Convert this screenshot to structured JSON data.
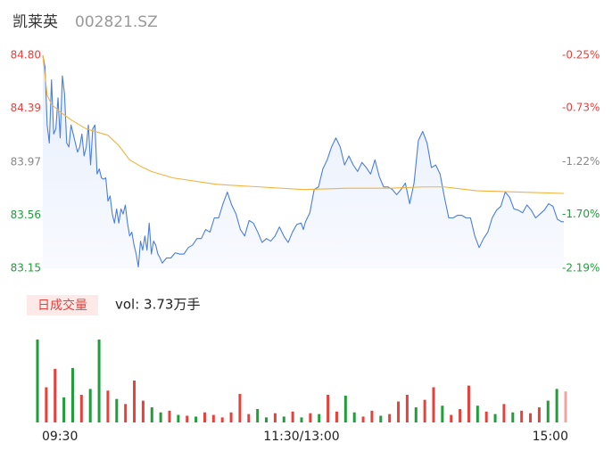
{
  "chart_data": [
    {
      "type": "line",
      "title": "凯莱英",
      "subtitle": "002821.SZ",
      "x": [
        0,
        1,
        2,
        3,
        4,
        5,
        6,
        7,
        8,
        9,
        10,
        11,
        12,
        13,
        14,
        15,
        16,
        17,
        18,
        19,
        20,
        21,
        22,
        23,
        24,
        25,
        26,
        27,
        28,
        29,
        30,
        31,
        32,
        33,
        34,
        35,
        36,
        37,
        38,
        39,
        40,
        41,
        42,
        43,
        44,
        45,
        46,
        47,
        48,
        49,
        50,
        51,
        52,
        53,
        54,
        55,
        57,
        59,
        61,
        63,
        65,
        67,
        69,
        71,
        73,
        75,
        77,
        79,
        81,
        83,
        85,
        87,
        89,
        91,
        93,
        95,
        97,
        99,
        101,
        103,
        105,
        107,
        109,
        111,
        113,
        115,
        117,
        119,
        120,
        121,
        123,
        125,
        127,
        129,
        131,
        133,
        135,
        137,
        139,
        141,
        143,
        145,
        147,
        149,
        151,
        153,
        155,
        157,
        159,
        161,
        163,
        165,
        167,
        169,
        171,
        173,
        175,
        177,
        179,
        181,
        183,
        185,
        187,
        189,
        191,
        193,
        195,
        197,
        199,
        201,
        203,
        205,
        207,
        209,
        211,
        213,
        215,
        217,
        219,
        221,
        223,
        225,
        227,
        229,
        231,
        233,
        235,
        237,
        239,
        240
      ],
      "series": [
        {
          "color": "#4a7fe0",
          "values": [
            84.8,
            84.71,
            84.26,
            84.12,
            84.61,
            84.19,
            84.23,
            84.47,
            84.16,
            84.64,
            84.5,
            84.12,
            84.09,
            84.26,
            84.19,
            84.12,
            84.05,
            84.09,
            84.19,
            84.02,
            84.09,
            84.26,
            83.95,
            84.23,
            84.26,
            83.88,
            83.92,
            83.85,
            83.84,
            83.85,
            83.67,
            83.71,
            83.57,
            83.5,
            83.61,
            83.5,
            83.61,
            83.57,
            83.64,
            83.5,
            83.4,
            83.43,
            83.33,
            83.26,
            83.16,
            83.36,
            83.29,
            83.4,
            83.29,
            83.5,
            83.26,
            83.36,
            83.33,
            83.26,
            83.23,
            83.19,
            83.23,
            83.23,
            83.27,
            83.26,
            83.26,
            83.31,
            83.33,
            83.38,
            83.38,
            83.45,
            83.43,
            83.54,
            83.54,
            83.65,
            83.74,
            83.64,
            83.57,
            83.45,
            83.4,
            83.52,
            83.5,
            83.43,
            83.35,
            83.38,
            83.36,
            83.4,
            83.47,
            83.4,
            83.35,
            83.43,
            83.49,
            83.5,
            83.45,
            83.51,
            83.58,
            83.76,
            83.78,
            83.92,
            83.99,
            84.09,
            84.16,
            84.09,
            83.95,
            84.02,
            83.95,
            83.9,
            83.97,
            83.93,
            83.88,
            83.99,
            83.86,
            83.78,
            83.78,
            83.76,
            83.72,
            83.76,
            83.81,
            83.65,
            83.81,
            84.14,
            84.21,
            84.12,
            83.93,
            83.95,
            83.88,
            83.7,
            83.54,
            83.54,
            83.56,
            83.56,
            83.54,
            83.54,
            83.4,
            83.31,
            83.38,
            83.43,
            83.54,
            83.6,
            83.63,
            83.74,
            83.7,
            83.61,
            83.6,
            83.58,
            83.64,
            83.6,
            83.54,
            83.57,
            83.6,
            83.65,
            83.63,
            83.53,
            83.51,
            83.51
          ],
          "area": true
        },
        {
          "color": "#f2b33d",
          "x": [
            0,
            2,
            4,
            8,
            13,
            20,
            30,
            35,
            40,
            45,
            50,
            60,
            80,
            100,
            120,
            140,
            160,
            175,
            185,
            200,
            220,
            240
          ],
          "values": [
            84.8,
            84.49,
            84.42,
            84.36,
            84.3,
            84.23,
            84.18,
            84.1,
            83.99,
            83.94,
            83.9,
            83.85,
            83.8,
            83.78,
            83.76,
            83.77,
            83.77,
            83.78,
            83.78,
            83.75,
            83.74,
            83.73
          ]
        }
      ],
      "xlim": [
        0,
        240
      ],
      "ylim": [
        83.15,
        84.8
      ],
      "yticks": [
        {
          "value": 84.8,
          "label": "84.80"
        },
        84.39,
        83.97,
        83.56,
        83.15
      ],
      "y2lim": [
        -2.19,
        -0.25
      ],
      "y2ticks": [
        {
          "value": -0.25,
          "label": "-0.25%"
        },
        {
          "value": -0.73,
          "label": "-0.73%"
        },
        {
          "value": -1.22,
          "label": "-1.22%"
        },
        {
          "value": -1.7,
          "label": "-1.70%"
        },
        {
          "value": -2.19,
          "label": "-2.19%"
        }
      ],
      "ytick_colors": [
        "#e8413c",
        "#e8413c",
        "#888888",
        "#1f9e3a",
        "#1f9e3a"
      ]
    },
    {
      "type": "bar",
      "label": "日成交量",
      "annotation": "vol: 3.73万手",
      "x": [
        0,
        4,
        8,
        12,
        16,
        20,
        24,
        28,
        32,
        36,
        40,
        44,
        48,
        52,
        56,
        60,
        64,
        68,
        72,
        76,
        80,
        84,
        88,
        92,
        96,
        100,
        104,
        108,
        112,
        116,
        120,
        124,
        128,
        132,
        136,
        140,
        144,
        148,
        152,
        156,
        160,
        164,
        168,
        172,
        176,
        180,
        184,
        188,
        192,
        196,
        200,
        204,
        208,
        212,
        216,
        220,
        224,
        228,
        232,
        236,
        240
      ],
      "values": [
        990,
        420,
        640,
        300,
        650,
        330,
        400,
        990,
        380,
        280,
        220,
        500,
        260,
        180,
        120,
        140,
        90,
        80,
        70,
        120,
        90,
        60,
        120,
        340,
        100,
        160,
        60,
        110,
        70,
        130,
        60,
        110,
        100,
        330,
        130,
        320,
        120,
        70,
        140,
        80,
        100,
        250,
        330,
        180,
        270,
        420,
        200,
        90,
        160,
        440,
        200,
        130,
        100,
        220,
        120,
        140,
        110,
        180,
        260,
        400,
        370
      ],
      "colors": [
        "#1f9e3a",
        "#e8413c",
        "#e8413c",
        "#1f9e3a",
        "#1f9e3a",
        "#e8413c",
        "#1f9e3a",
        "#1f9e3a",
        "#e8413c",
        "#1f9e3a",
        "#e8413c",
        "#e8413c",
        "#e8413c",
        "#1f9e3a",
        "#1f9e3a",
        "#e8413c",
        "#1f9e3a",
        "#e8413c",
        "#1f9e3a",
        "#e8413c",
        "#e8413c",
        "#e8413c",
        "#e8413c",
        "#e8413c",
        "#e8413c",
        "#1f9e3a",
        "#1f9e3a",
        "#e8413c",
        "#1f9e3a",
        "#e8413c",
        "#1f9e3a",
        "#e8413c",
        "#1f9e3a",
        "#e8413c",
        "#e8413c",
        "#1f9e3a",
        "#1f9e3a",
        "#e8413c",
        "#e8413c",
        "#1f9e3a",
        "#e8413c",
        "#e8413c",
        "#e8413c",
        "#1f9e3a",
        "#e8413c",
        "#e8413c",
        "#1f9e3a",
        "#e8413c",
        "#e8413c",
        "#e8413c",
        "#1f9e3a",
        "#e8413c",
        "#1f9e3a",
        "#e8413c",
        "#1f9e3a",
        "#e8413c",
        "#e8413c",
        "#e8413c",
        "#1f9e3a",
        "#1f9e3a",
        "#f4a3a0"
      ],
      "xlim": [
        0,
        240
      ],
      "ylim": [
        0,
        1000
      ],
      "xticks": [
        {
          "value": 0,
          "label": "09:30"
        },
        {
          "value": 120,
          "label": "11:30/13:00"
        },
        {
          "value": 240,
          "label": "15:00"
        }
      ]
    }
  ]
}
